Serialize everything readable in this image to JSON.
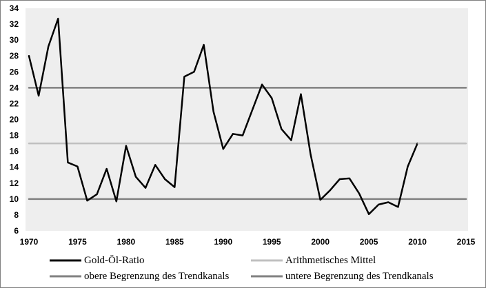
{
  "chart_data": {
    "type": "line",
    "title": "",
    "xlabel": "",
    "ylabel": "",
    "xlim": [
      1970,
      2015
    ],
    "ylim": [
      6,
      34
    ],
    "x_ticks": [
      "1970",
      "1975",
      "1980",
      "1985",
      "1990",
      "1995",
      "2000",
      "2005",
      "2010",
      "2015"
    ],
    "y_ticks": [
      "6",
      "8",
      "10",
      "12",
      "14",
      "16",
      "18",
      "20",
      "22",
      "24",
      "26",
      "28",
      "30",
      "32",
      "34"
    ],
    "grid": false,
    "legend_position": "bottom",
    "background": "#eeeeee",
    "series": [
      {
        "name": "Gold-Öl-Ratio",
        "color": "#000000",
        "x": [
          1970,
          1971,
          1972,
          1973,
          1974,
          1975,
          1976,
          1977,
          1978,
          1979,
          1980,
          1981,
          1982,
          1983,
          1984,
          1985,
          1986,
          1987,
          1988,
          1989,
          1990,
          1991,
          1992,
          1993,
          1994,
          1995,
          1996,
          1997,
          1998,
          1999,
          2000,
          2001,
          2002,
          2003,
          2004,
          2005,
          2006,
          2007,
          2008,
          2009,
          2010
        ],
        "values": [
          28,
          23,
          29.2,
          32.7,
          14.6,
          14.1,
          9.8,
          10.6,
          13.8,
          9.7,
          16.7,
          12.8,
          11.4,
          14.3,
          12.5,
          11.5,
          25.4,
          26,
          29.4,
          21,
          16.3,
          18.2,
          18,
          21.2,
          24.4,
          22.7,
          18.8,
          17.4,
          23.2,
          15.6,
          9.9,
          11.1,
          12.5,
          12.6,
          10.7,
          8.1,
          9.3,
          9.6,
          9,
          14.1,
          17
        ]
      },
      {
        "name": "Arithmetisches Mittel",
        "color": "#c0c0c0",
        "x": [
          1970,
          2015
        ],
        "values": [
          17,
          17
        ]
      },
      {
        "name": "obere Begrenzung des Trendkanals",
        "color": "#808080",
        "x": [
          1970,
          2015
        ],
        "values": [
          24,
          24
        ]
      },
      {
        "name": "untere Begrenzung des Trendkanals",
        "color": "#808080",
        "x": [
          1970,
          2015
        ],
        "values": [
          10,
          10
        ]
      }
    ],
    "legend": [
      "Gold-Öl-Ratio",
      "Arithmetisches Mittel",
      "obere Begrenzung des Trendkanals",
      "untere Begrenzung des Trendkanals"
    ],
    "extension_line": {
      "color": "#c0c0c0",
      "x": [
        2010,
        2015
      ],
      "values": [
        17,
        17
      ]
    }
  }
}
